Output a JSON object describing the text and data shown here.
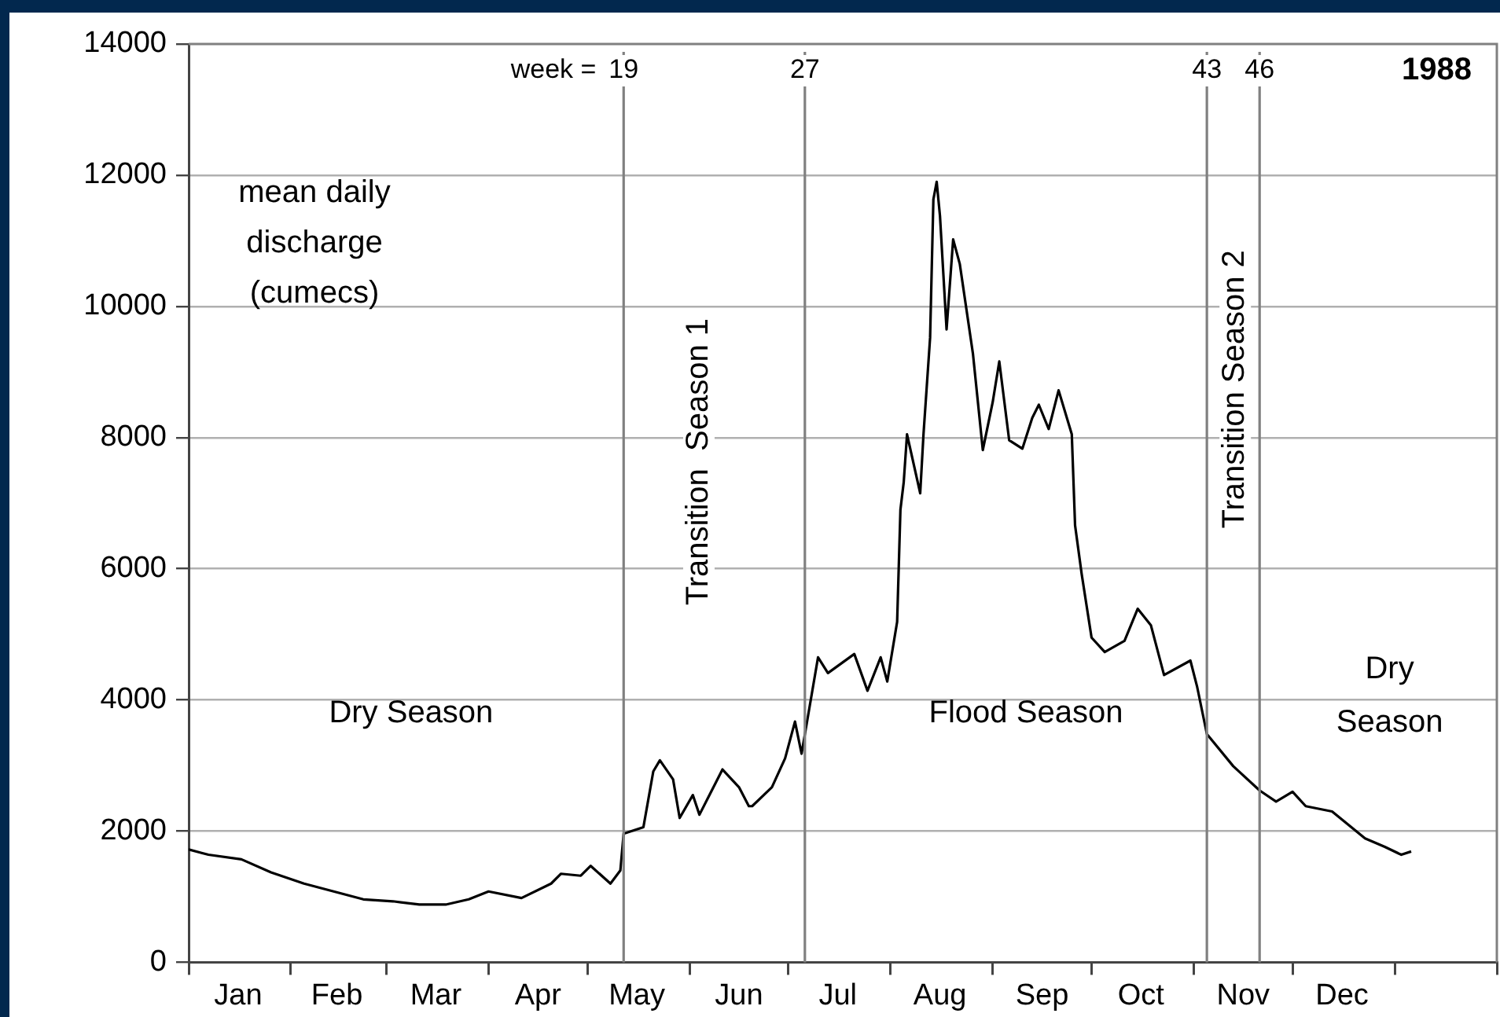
{
  "chart_data": {
    "type": "line",
    "title": "1988",
    "ylabel": "mean daily discharge (cumecs)",
    "x": [
      "1988-01-01",
      "1988-01-07",
      "1988-01-17",
      "1988-01-26",
      "1988-02-05",
      "1988-02-14",
      "1988-02-23",
      "1988-03-03",
      "1988-03-11",
      "1988-03-19",
      "1988-03-26",
      "1988-04-01",
      "1988-04-11",
      "1988-04-20",
      "1988-04-23",
      "1988-04-29",
      "1988-05-02",
      "1988-05-08",
      "1988-05-11",
      "1988-05-12",
      "1988-05-18",
      "1988-05-21",
      "1988-05-23",
      "1988-05-27",
      "1988-05-29",
      "1988-06-02",
      "1988-06-04",
      "1988-06-11",
      "1988-06-16",
      "1988-06-19",
      "1988-06-20",
      "1988-06-26",
      "1988-06-30",
      "1988-07-03",
      "1988-07-05",
      "1988-07-10",
      "1988-07-13",
      "1988-07-21",
      "1988-07-25",
      "1988-07-29",
      "1988-07-31",
      "1988-08-03",
      "1988-08-04",
      "1988-08-05",
      "1988-08-06",
      "1988-08-10",
      "1988-08-11",
      "1988-08-13",
      "1988-08-14",
      "1988-08-15",
      "1988-08-16",
      "1988-08-18",
      "1988-08-20",
      "1988-08-22",
      "1988-08-26",
      "1988-08-29",
      "1988-09-01",
      "1988-09-03",
      "1988-09-06",
      "1988-09-10",
      "1988-09-13",
      "1988-09-15",
      "1988-09-18",
      "1988-09-21",
      "1988-09-25",
      "1988-09-26",
      "1988-09-28",
      "1988-10-01",
      "1988-10-05",
      "1988-10-11",
      "1988-10-15",
      "1988-10-19",
      "1988-10-23",
      "1988-10-31",
      "1988-11-02",
      "1988-11-05",
      "1988-11-13",
      "1988-11-21",
      "1988-11-26",
      "1988-12-01",
      "1988-12-05",
      "1988-12-13",
      "1988-12-23",
      "1988-12-29",
      "1989-01-03",
      "1989-01-06"
    ],
    "series": [
      {
        "color": "#000000",
        "values": [
          1720,
          1640,
          1570,
          1370,
          1200,
          1080,
          960,
          930,
          880,
          880,
          960,
          1080,
          980,
          1200,
          1350,
          1320,
          1470,
          1200,
          1400,
          1960,
          2060,
          2910,
          3080,
          2790,
          2200,
          2550,
          2250,
          2940,
          2670,
          2380,
          2380,
          2670,
          3110,
          3670,
          3180,
          4650,
          4410,
          4700,
          4140,
          4650,
          4280,
          5190,
          6900,
          7320,
          8050,
          7150,
          8050,
          9520,
          11630,
          11900,
          11380,
          9650,
          11020,
          10650,
          9280,
          7810,
          8540,
          9160,
          7960,
          7830,
          8300,
          8500,
          8130,
          8720,
          8050,
          6660,
          5920,
          4950,
          4730,
          4900,
          5390,
          5140,
          4380,
          4600,
          4210,
          3480,
          2990,
          2620,
          2450,
          2600,
          2380,
          2300,
          1890,
          1760,
          1640,
          1690
        ]
      }
    ],
    "xlim": [
      "1988-01-01",
      "1989-02-01"
    ],
    "xticks": [
      {
        "value": "1988-01-01",
        "label": null
      },
      {
        "value": "1988-01-16",
        "label": "Jan"
      },
      {
        "value": "1988-02-01",
        "label": null
      },
      {
        "value": "1988-02-15",
        "label": "Feb"
      },
      {
        "value": "1988-03-01",
        "label": null
      },
      {
        "value": "1988-03-16",
        "label": "Mar"
      },
      {
        "value": "1988-04-01",
        "label": null
      },
      {
        "value": "1988-04-16",
        "label": "Apr"
      },
      {
        "value": "1988-05-01",
        "label": null
      },
      {
        "value": "1988-05-16",
        "label": "May"
      },
      {
        "value": "1988-06-01",
        "label": null
      },
      {
        "value": "1988-06-16",
        "label": "Jun"
      },
      {
        "value": "1988-07-01",
        "label": null
      },
      {
        "value": "1988-07-16",
        "label": "Jul"
      },
      {
        "value": "1988-08-01",
        "label": null
      },
      {
        "value": "1988-08-16",
        "label": "Aug"
      },
      {
        "value": "1988-09-01",
        "label": null
      },
      {
        "value": "1988-09-16",
        "label": "Sep"
      },
      {
        "value": "1988-10-01",
        "label": null
      },
      {
        "value": "1988-10-16",
        "label": "Oct"
      },
      {
        "value": "1988-11-01",
        "label": null
      },
      {
        "value": "1988-11-16",
        "label": "Nov"
      },
      {
        "value": "1988-12-01",
        "label": null
      },
      {
        "value": "1988-12-16",
        "label": "Dec"
      },
      {
        "value": "1989-01-01",
        "label": null
      },
      {
        "value": "1989-02-01",
        "label": null
      }
    ],
    "ylim": [
      0,
      14000
    ],
    "yticks": [
      0,
      2000,
      4000,
      6000,
      8000,
      10000,
      12000,
      14000
    ],
    "grid": "y",
    "legend": false,
    "marker": "none",
    "line_style": "solid",
    "ref_lines": [
      {
        "axis": "x",
        "value": "1988-05-12",
        "label": "19",
        "color": "#808080"
      },
      {
        "axis": "x",
        "value": "1988-07-06",
        "label": "27",
        "color": "#808080"
      },
      {
        "axis": "x",
        "value": "1988-11-05",
        "label": "43",
        "color": "#808080"
      },
      {
        "axis": "x",
        "value": "1988-11-21",
        "label": "46",
        "color": "#808080"
      }
    ],
    "annotations": [
      "week =",
      "Dry Season",
      "Transition  Season 1",
      "Flood Season",
      "Transition Season 2",
      "Dry Season"
    ]
  }
}
